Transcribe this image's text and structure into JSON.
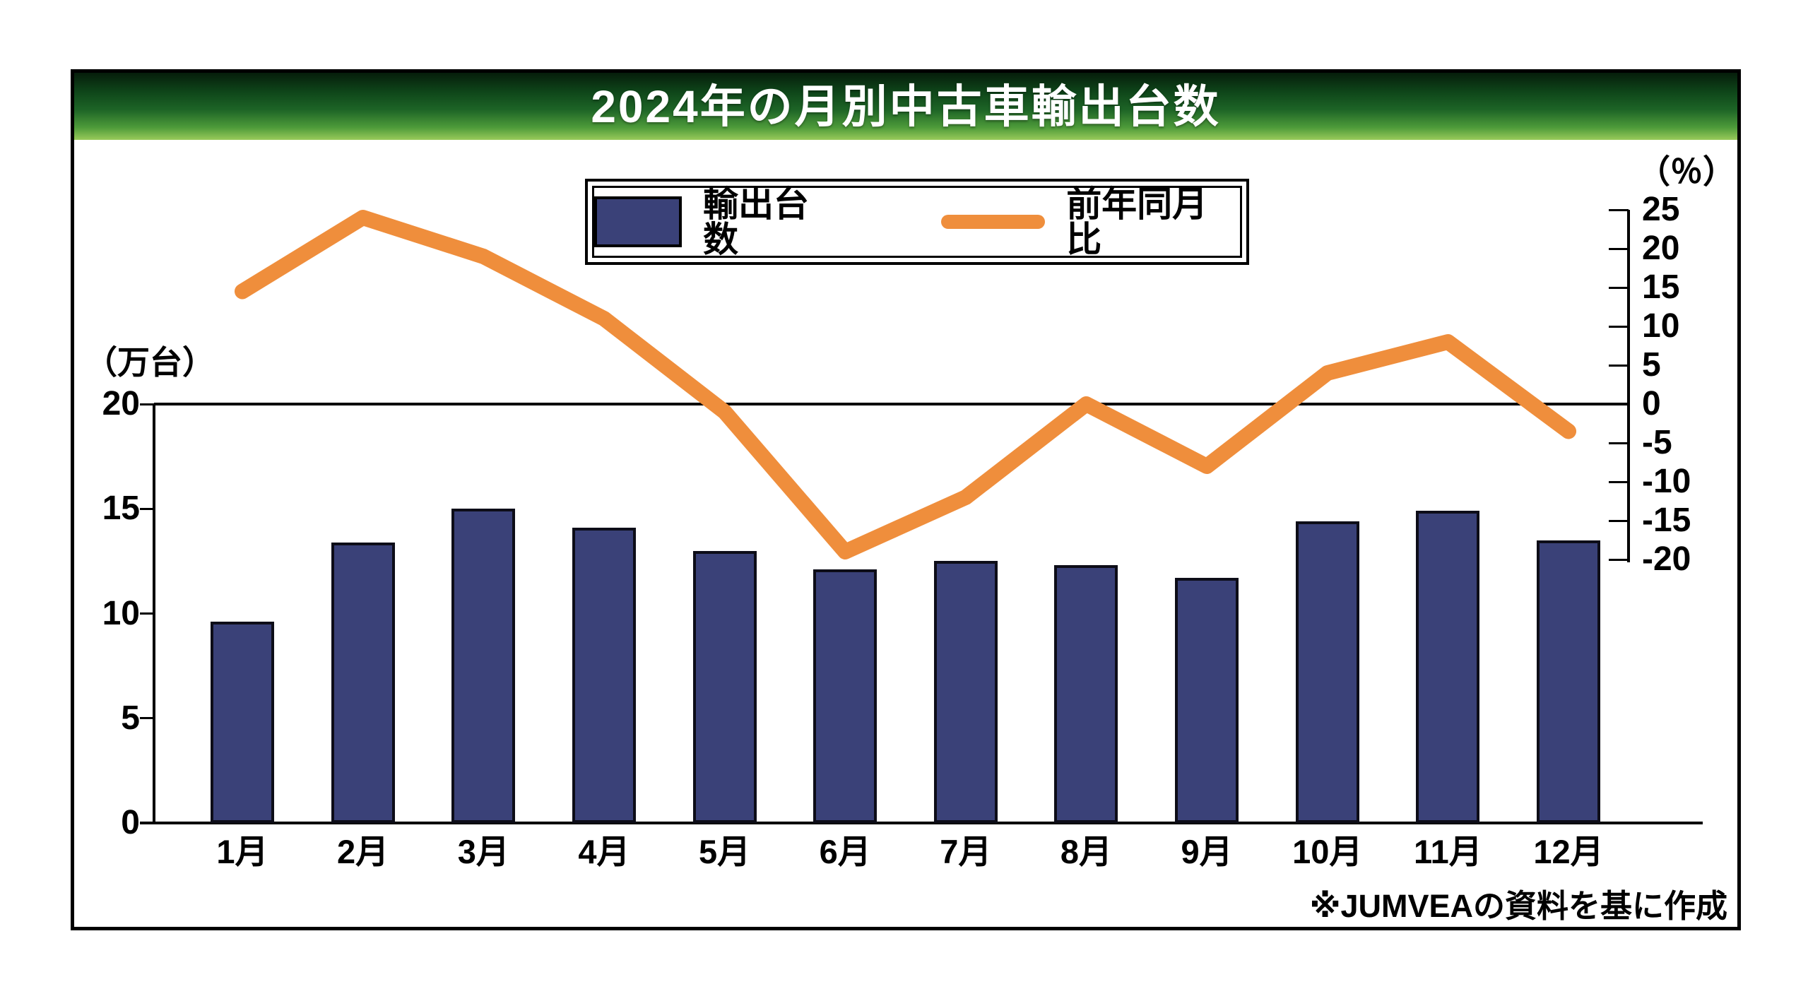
{
  "title": "2024年の月別中古車輸出台数",
  "legend": {
    "bar_label": "輸出台数",
    "line_label": "前年同月比"
  },
  "footer_note": "※JUMVEAの資料を基に作成",
  "colors": {
    "bar_fill": "#3a4178",
    "bar_border": "#0d0d18",
    "line": "#ef8e3c",
    "banner_text": "#ffffff",
    "axis": "#000000"
  },
  "chart_data": {
    "type": "bar+line",
    "title": "2024年の月別中古車輸出台数",
    "categories": [
      "1月",
      "2月",
      "3月",
      "4月",
      "5月",
      "6月",
      "7月",
      "8月",
      "9月",
      "10月",
      "11月",
      "12月"
    ],
    "series": [
      {
        "name": "輸出台数",
        "chart": "bar",
        "axis": "left",
        "unit": "万台",
        "values": [
          9.6,
          13.4,
          15.0,
          14.1,
          13.0,
          12.1,
          12.5,
          12.3,
          11.7,
          14.4,
          14.9,
          13.5
        ]
      },
      {
        "name": "前年同月比",
        "chart": "line",
        "axis": "right",
        "unit": "%",
        "values": [
          14.5,
          24,
          19,
          11,
          -1,
          -19,
          -12,
          0,
          -8,
          4,
          8,
          -3.5
        ]
      }
    ],
    "left_axis": {
      "label": "（万台）",
      "ticks": [
        20,
        15,
        10,
        5,
        0
      ],
      "range": [
        0,
        20
      ]
    },
    "right_axis": {
      "label": "（％）",
      "ticks": [
        25,
        20,
        15,
        10,
        5,
        0,
        -5,
        -10,
        -15,
        -20
      ],
      "range": [
        -20,
        25
      ]
    },
    "legend_position": "top-center",
    "grid": false,
    "source_note": "※JUMVEAの資料を基に作成"
  }
}
